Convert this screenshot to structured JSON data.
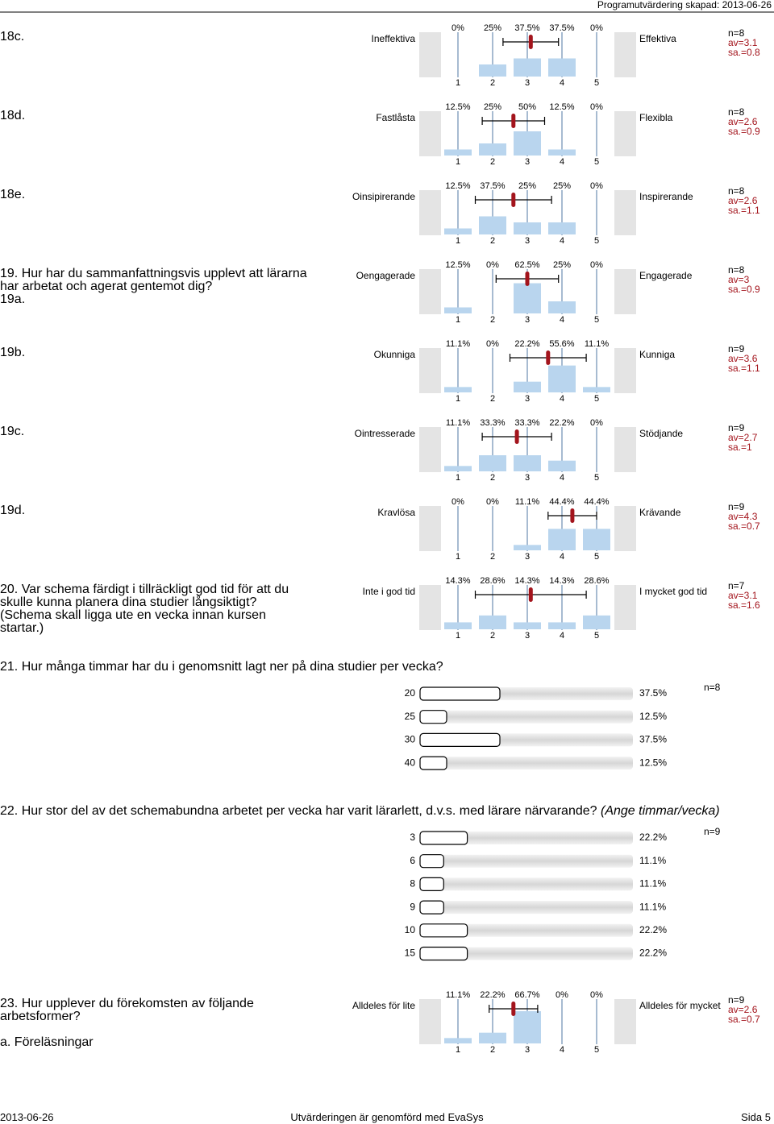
{
  "header": {
    "title": "Programutvärdering skapad: 2013-06-26"
  },
  "scale_labels": [
    1,
    2,
    3,
    4,
    5
  ],
  "scale_items": [
    {
      "label": "18c.",
      "left": "Ineffektiva",
      "right": "Effektiva",
      "values": [
        0,
        25,
        37.5,
        37.5,
        0
      ],
      "value_labels": [
        "0%",
        "25%",
        "37.5%",
        "37.5%",
        "0%"
      ],
      "n": "n=8",
      "av": 3.1,
      "av_label": "av=3.1",
      "sa": 0.8,
      "sa_label": "sa.=0.8"
    },
    {
      "label": "18d.",
      "left": "Fastlåsta",
      "right": "Flexibla",
      "values": [
        12.5,
        25,
        50,
        12.5,
        0
      ],
      "value_labels": [
        "12.5%",
        "25%",
        "50%",
        "12.5%",
        "0%"
      ],
      "n": "n=8",
      "av": 2.6,
      "av_label": "av=2.6",
      "sa": 0.9,
      "sa_label": "sa.=0.9"
    },
    {
      "label": "18e.",
      "left": "Oinsipirerande",
      "right": "Inspirerande",
      "values": [
        12.5,
        37.5,
        25,
        25,
        0
      ],
      "value_labels": [
        "12.5%",
        "37.5%",
        "25%",
        "25%",
        "0%"
      ],
      "n": "n=8",
      "av": 2.6,
      "av_label": "av=2.6",
      "sa": 1.1,
      "sa_label": "sa.=1.1"
    },
    {
      "question": "19. Hur har du sammanfattningsvis upplevt att lärarna har arbetat och agerat gentemot dig?",
      "label": "19a.",
      "left": "Oengagerade",
      "right": "Engagerade",
      "values": [
        12.5,
        0,
        62.5,
        25,
        0
      ],
      "value_labels": [
        "12.5%",
        "0%",
        "62.5%",
        "25%",
        "0%"
      ],
      "n": "n=8",
      "av": 3,
      "av_label": "av=3",
      "sa": 0.9,
      "sa_label": "sa.=0.9"
    },
    {
      "label": "19b.",
      "left": "Okunniga",
      "right": "Kunniga",
      "values": [
        11.1,
        0,
        22.2,
        55.6,
        11.1
      ],
      "value_labels": [
        "11.1%",
        "0%",
        "22.2%",
        "55.6%",
        "11.1%"
      ],
      "n": "n=9",
      "av": 3.6,
      "av_label": "av=3.6",
      "sa": 1.1,
      "sa_label": "sa.=1.1"
    },
    {
      "label": "19c.",
      "left": "Ointresserade",
      "right": "Stödjande",
      "values": [
        11.1,
        33.3,
        33.3,
        22.2,
        0
      ],
      "value_labels": [
        "11.1%",
        "33.3%",
        "33.3%",
        "22.2%",
        "0%"
      ],
      "n": "n=9",
      "av": 2.7,
      "av_label": "av=2.7",
      "sa": 1,
      "sa_label": "sa.=1"
    },
    {
      "label": "19d.",
      "left": "Kravlösa",
      "right": "Krävande",
      "values": [
        0,
        0,
        11.1,
        44.4,
        44.4
      ],
      "value_labels": [
        "0%",
        "0%",
        "11.1%",
        "44.4%",
        "44.4%"
      ],
      "n": "n=9",
      "av": 4.3,
      "av_label": "av=4.3",
      "sa": 0.7,
      "sa_label": "sa.=0.7"
    },
    {
      "question": "20. Var schema färdigt i tillräckligt god tid för att du skulle kunna planera dina studier långsiktigt? (Schema skall ligga ute en vecka innan kursen startar.)",
      "left": "Inte i god tid",
      "right": "I mycket god tid",
      "values": [
        14.3,
        28.6,
        14.3,
        14.3,
        28.6
      ],
      "value_labels": [
        "14.3%",
        "28.6%",
        "14.3%",
        "14.3%",
        "28.6%"
      ],
      "n": "n=7",
      "av": 3.1,
      "av_label": "av=3.1",
      "sa": 1.6,
      "sa_label": "sa.=1.6"
    },
    {
      "question": "23. Hur upplever du förekomsten av följande arbetsformer?",
      "label": "a. Föreläsningar",
      "left": "Alldeles för lite",
      "right": "Alldeles för mycket",
      "values": [
        11.1,
        22.2,
        66.7,
        0,
        0
      ],
      "value_labels": [
        "11.1%",
        "22.2%",
        "66.7%",
        "0%",
        "0%"
      ],
      "n": "n=9",
      "av": 2.6,
      "av_label": "av=2.6",
      "sa": 0.7,
      "sa_label": "sa.=0.7"
    }
  ],
  "frequency_questions": [
    {
      "title": "21. Hur många timmar har du i genomsnitt lagt ner på dina studier per vecka?",
      "options": [
        20,
        25,
        30,
        40
      ],
      "values": [
        37.5,
        12.5,
        37.5,
        12.5
      ],
      "value_labels": [
        "37.5%",
        "12.5%",
        "37.5%",
        "12.5%"
      ],
      "n": "n=8"
    },
    {
      "title": "22. Hur stor del av det schemabundna arbetet per vecka har varit lärarlett, d.v.s. med lärare närvarande?",
      "title_note": "(Ange timmar/vecka)",
      "options": [
        3,
        6,
        8,
        9,
        10,
        15
      ],
      "values": [
        22.2,
        11.1,
        11.1,
        11.1,
        22.2,
        22.2
      ],
      "value_labels": [
        "22.2%",
        "11.1%",
        "11.1%",
        "11.1%",
        "22.2%",
        "22.2%"
      ],
      "n": "n=9"
    }
  ],
  "footer": {
    "date": "2013-06-26",
    "center": "Utvärderingen är genomförd med EvaSys",
    "page": "Sida 5"
  }
}
